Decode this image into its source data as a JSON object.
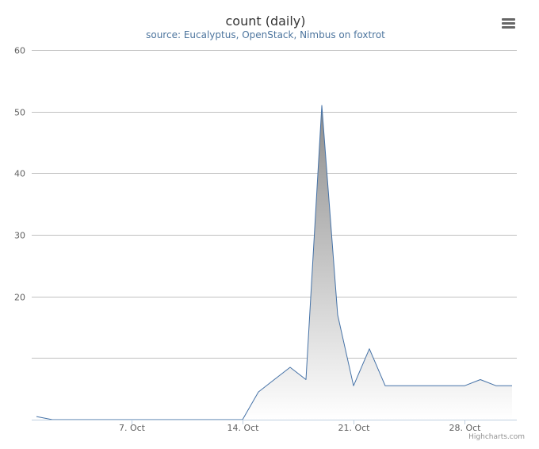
{
  "chart_data": {
    "type": "area",
    "title": "count (daily)",
    "subtitle": "source: Eucalyptus, OpenStack, Nimbus on foxtrot",
    "xlabel": "",
    "ylabel": "",
    "ylim": [
      0,
      60
    ],
    "y_ticks": [
      {
        "value": 10,
        "label": ""
      },
      {
        "value": 20,
        "label": "20"
      },
      {
        "value": 30,
        "label": "30"
      },
      {
        "value": 40,
        "label": "40"
      },
      {
        "value": 50,
        "label": "50"
      },
      {
        "value": 60,
        "label": "60"
      }
    ],
    "xlim": [
      "2013-10-01",
      "2013-10-31"
    ],
    "x_ticks": [
      {
        "date": "2013-10-07",
        "label": "7. Oct"
      },
      {
        "date": "2013-10-14",
        "label": "14. Oct"
      },
      {
        "date": "2013-10-21",
        "label": "21. Oct"
      },
      {
        "date": "2013-10-28",
        "label": "28. Oct"
      }
    ],
    "grid": true,
    "legend": "none",
    "series": [
      {
        "color": "#4572a7",
        "points": [
          {
            "x": "2013-10-01",
            "y": 0.5
          },
          {
            "x": "2013-10-02",
            "y": 0
          },
          {
            "x": "2013-10-03",
            "y": 0
          },
          {
            "x": "2013-10-04",
            "y": 0
          },
          {
            "x": "2013-10-05",
            "y": 0
          },
          {
            "x": "2013-10-06",
            "y": 0
          },
          {
            "x": "2013-10-07",
            "y": 0
          },
          {
            "x": "2013-10-08",
            "y": 0
          },
          {
            "x": "2013-10-09",
            "y": 0
          },
          {
            "x": "2013-10-10",
            "y": 0
          },
          {
            "x": "2013-10-11",
            "y": 0
          },
          {
            "x": "2013-10-12",
            "y": 0
          },
          {
            "x": "2013-10-13",
            "y": 0
          },
          {
            "x": "2013-10-14",
            "y": 0
          },
          {
            "x": "2013-10-15",
            "y": 4.5
          },
          {
            "x": "2013-10-16",
            "y": 6.5
          },
          {
            "x": "2013-10-17",
            "y": 8.5
          },
          {
            "x": "2013-10-18",
            "y": 6.5
          },
          {
            "x": "2013-10-19",
            "y": 51
          },
          {
            "x": "2013-10-20",
            "y": 17
          },
          {
            "x": "2013-10-21",
            "y": 5.5
          },
          {
            "x": "2013-10-22",
            "y": 11.5
          },
          {
            "x": "2013-10-23",
            "y": 5.5
          },
          {
            "x": "2013-10-24",
            "y": 5.5
          },
          {
            "x": "2013-10-25",
            "y": 5.5
          },
          {
            "x": "2013-10-26",
            "y": 5.5
          },
          {
            "x": "2013-10-27",
            "y": 5.5
          },
          {
            "x": "2013-10-28",
            "y": 5.5
          },
          {
            "x": "2013-10-29",
            "y": 6.5
          },
          {
            "x": "2013-10-30",
            "y": 5.5
          },
          {
            "x": "2013-10-31",
            "y": 5.5
          }
        ]
      }
    ]
  },
  "credits": "Highcharts.com",
  "menu_icon": "hamburger-menu-icon"
}
